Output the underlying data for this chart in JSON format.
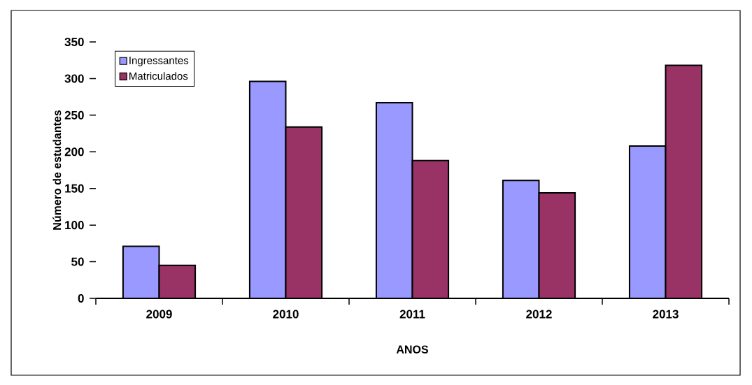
{
  "chart_data": {
    "type": "bar",
    "xlabel": "ANOS",
    "ylabel": "Número de estudantes",
    "categories": [
      "2009",
      "2010",
      "2011",
      "2012",
      "2013"
    ],
    "series": [
      {
        "name": "Ingressantes",
        "color": "#9999ff",
        "values": [
          71,
          296,
          267,
          161,
          208
        ]
      },
      {
        "name": "Matriculados",
        "color": "#993366",
        "values": [
          45,
          234,
          188,
          144,
          318
        ]
      }
    ],
    "ylim": [
      0,
      350
    ],
    "yticks": [
      0,
      50,
      100,
      150,
      200,
      250,
      300,
      350
    ],
    "legend": "top left",
    "grid": false
  }
}
